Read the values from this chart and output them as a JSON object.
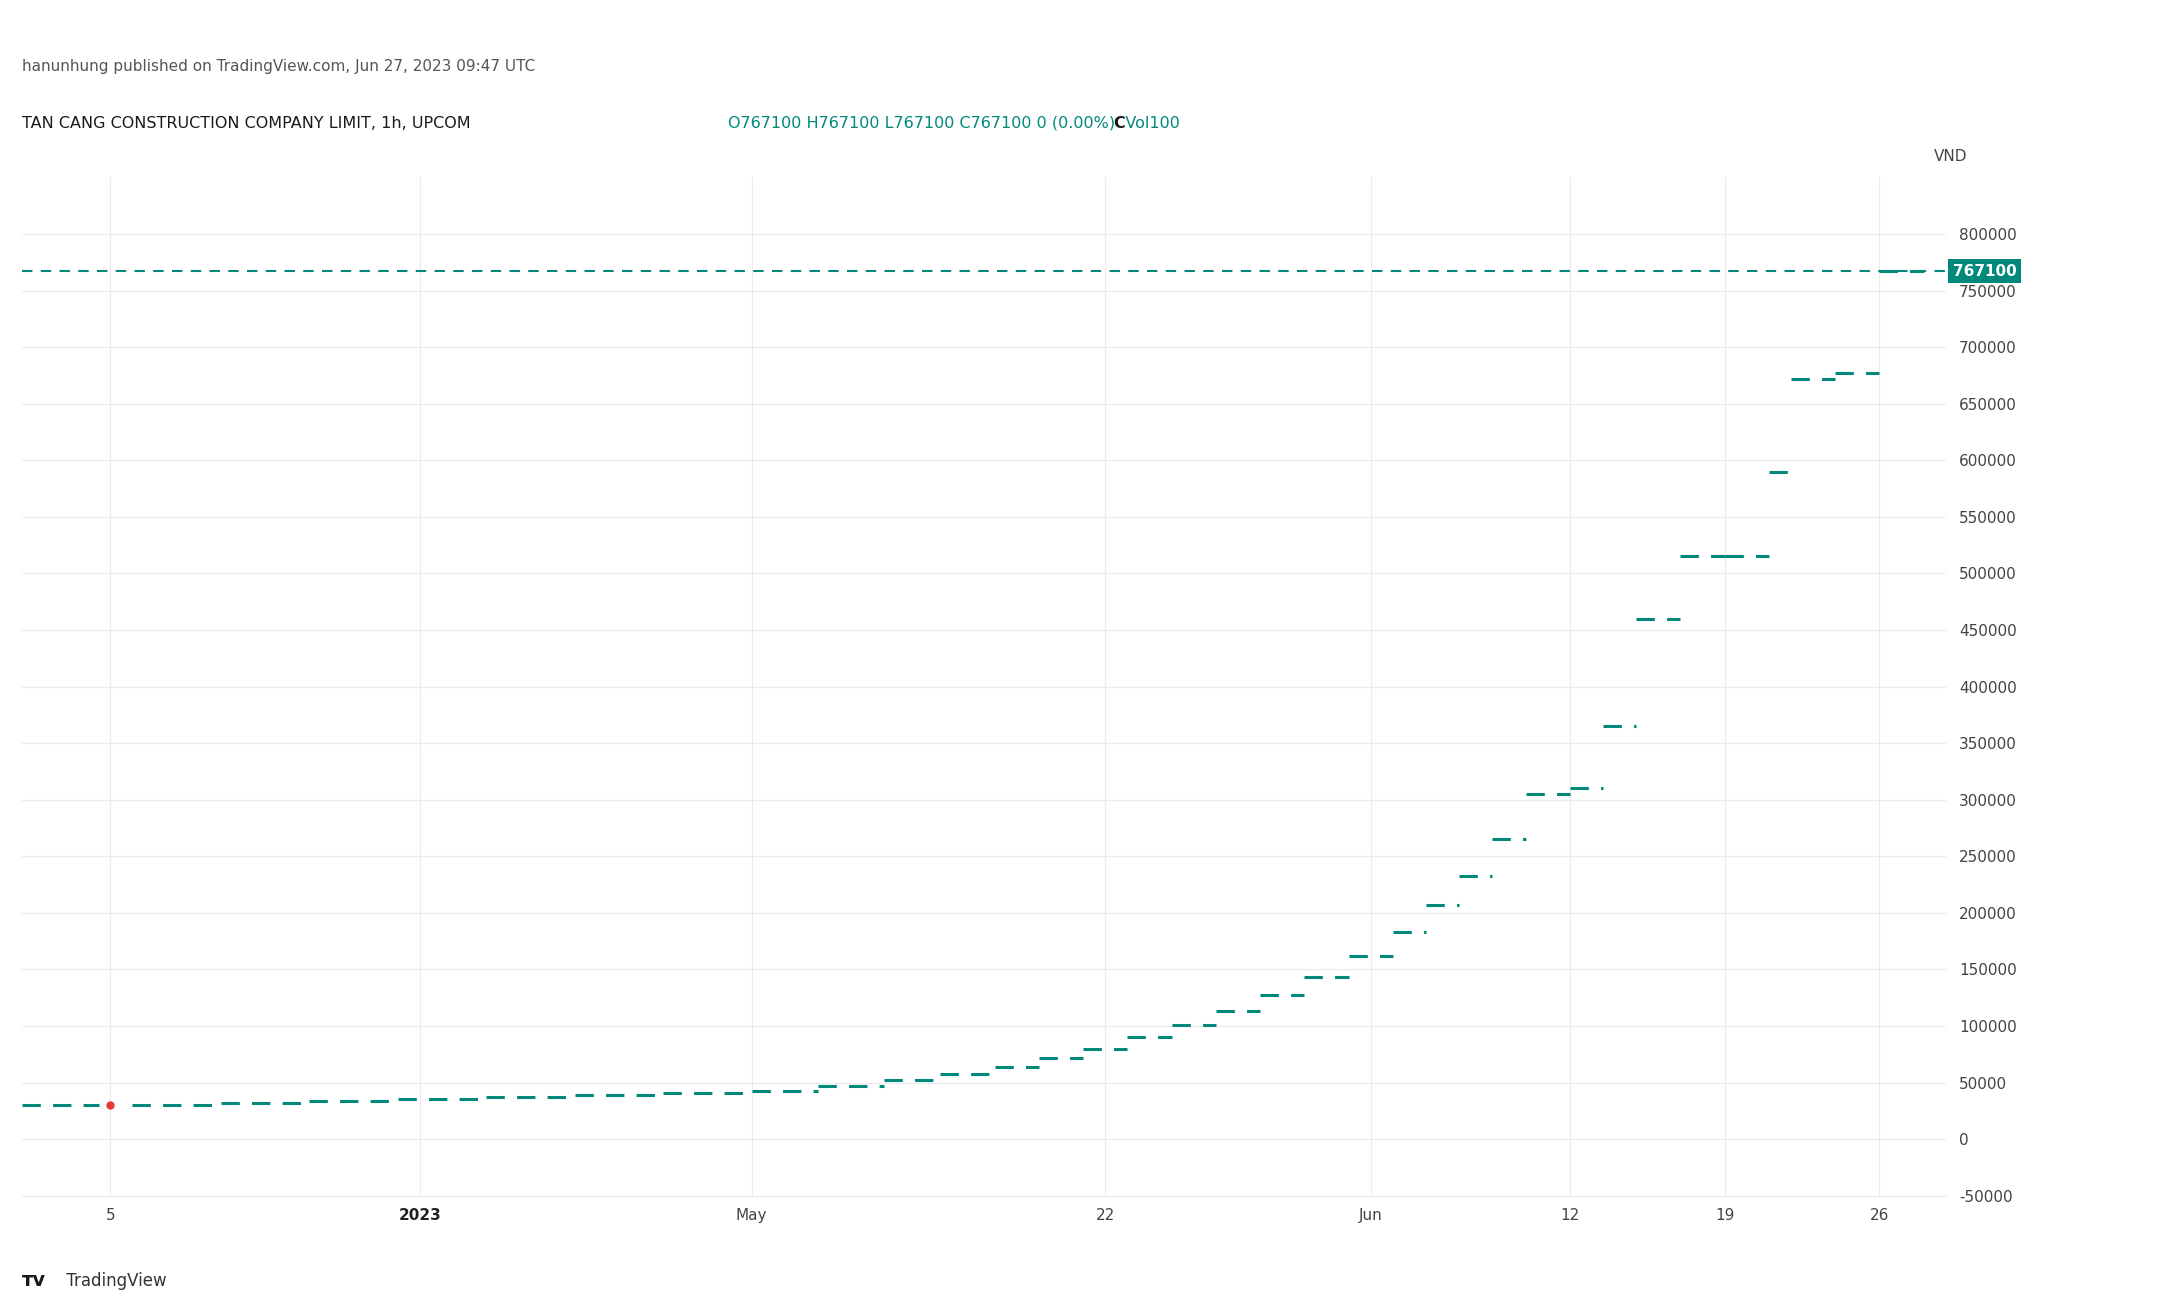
{
  "title_top": "hanunhung published on TradingView.com, Jun 27, 2023 09:47 UTC",
  "chart_title": "TAN CANG CONSTRUCTION COMPANY LIMIT, 1h, UPCOM",
  "ohlc_text": "O767100 H767100 L767100 C767100 0 (0.00%)  Vol100",
  "ohlc_c_label": "C",
  "ylabel": "VND",
  "background_color": "#ffffff",
  "grid_color": "#ebebeb",
  "line_color": "#00897b",
  "price_label_bg": "#00897b",
  "horizontal_line_color": "#00897b",
  "red_dot_color": "#e53935",
  "current_price": 767100,
  "ylim_min": -50000,
  "ylim_max": 850000,
  "yticks": [
    -50000,
    0,
    50000,
    100000,
    150000,
    200000,
    250000,
    300000,
    350000,
    400000,
    450000,
    500000,
    550000,
    600000,
    650000,
    700000,
    750000,
    800000
  ],
  "ytick_labels": [
    "-50000",
    "0",
    "50000",
    "100000",
    "150000",
    "200000",
    "250000",
    "300000",
    "350000",
    "400000",
    "450000",
    "500000",
    "550000",
    "600000",
    "650000",
    "700000",
    "750000",
    "800000"
  ],
  "segments": [
    {
      "x_start": 0,
      "x_end": 3.5,
      "y": 30000
    },
    {
      "x_start": 5,
      "x_end": 9,
      "y": 30000
    },
    {
      "x_start": 9,
      "x_end": 13,
      "y": 32000
    },
    {
      "x_start": 13,
      "x_end": 17,
      "y": 33500
    },
    {
      "x_start": 17,
      "x_end": 21,
      "y": 35500
    },
    {
      "x_start": 21,
      "x_end": 25,
      "y": 37000
    },
    {
      "x_start": 25,
      "x_end": 29,
      "y": 39000
    },
    {
      "x_start": 29,
      "x_end": 33,
      "y": 40500
    },
    {
      "x_start": 33,
      "x_end": 36,
      "y": 43000
    },
    {
      "x_start": 36,
      "x_end": 39,
      "y": 47000
    },
    {
      "x_start": 39,
      "x_end": 41.5,
      "y": 52000
    },
    {
      "x_start": 41.5,
      "x_end": 44,
      "y": 58000
    },
    {
      "x_start": 44,
      "x_end": 46,
      "y": 64000
    },
    {
      "x_start": 46,
      "x_end": 48,
      "y": 72000
    },
    {
      "x_start": 48,
      "x_end": 50,
      "y": 80000
    },
    {
      "x_start": 50,
      "x_end": 52,
      "y": 90000
    },
    {
      "x_start": 52,
      "x_end": 54,
      "y": 101000
    },
    {
      "x_start": 54,
      "x_end": 56,
      "y": 113000
    },
    {
      "x_start": 56,
      "x_end": 58,
      "y": 127000
    },
    {
      "x_start": 58,
      "x_end": 60,
      "y": 143000
    },
    {
      "x_start": 60,
      "x_end": 62,
      "y": 162000
    },
    {
      "x_start": 62,
      "x_end": 63.5,
      "y": 183000
    },
    {
      "x_start": 63.5,
      "x_end": 65,
      "y": 207000
    },
    {
      "x_start": 65,
      "x_end": 66.5,
      "y": 233000
    },
    {
      "x_start": 66.5,
      "x_end": 68,
      "y": 265000
    },
    {
      "x_start": 68,
      "x_end": 70,
      "y": 305000
    },
    {
      "x_start": 70,
      "x_end": 71.5,
      "y": 310000
    },
    {
      "x_start": 71.5,
      "x_end": 73,
      "y": 365000
    },
    {
      "x_start": 73,
      "x_end": 75,
      "y": 460000
    },
    {
      "x_start": 75,
      "x_end": 77,
      "y": 515000
    },
    {
      "x_start": 77,
      "x_end": 79,
      "y": 515000
    },
    {
      "x_start": 79,
      "x_end": 80,
      "y": 590000
    },
    {
      "x_start": 80,
      "x_end": 82,
      "y": 672000
    },
    {
      "x_start": 82,
      "x_end": 84,
      "y": 677000
    },
    {
      "x_start": 84,
      "x_end": 86,
      "y": 767100
    }
  ],
  "red_dot_x": 4.0,
  "red_dot_y": 30000,
  "xtick_positions": [
    4,
    18,
    33,
    49,
    61,
    70,
    77,
    84
  ],
  "xtick_labels": [
    "5",
    "2023",
    "May",
    "22",
    "Jun",
    "12",
    "19",
    "26"
  ],
  "xtick_bold": [
    false,
    true,
    false,
    false,
    false,
    false,
    false,
    false
  ],
  "xlim_min": 0,
  "xlim_max": 87
}
